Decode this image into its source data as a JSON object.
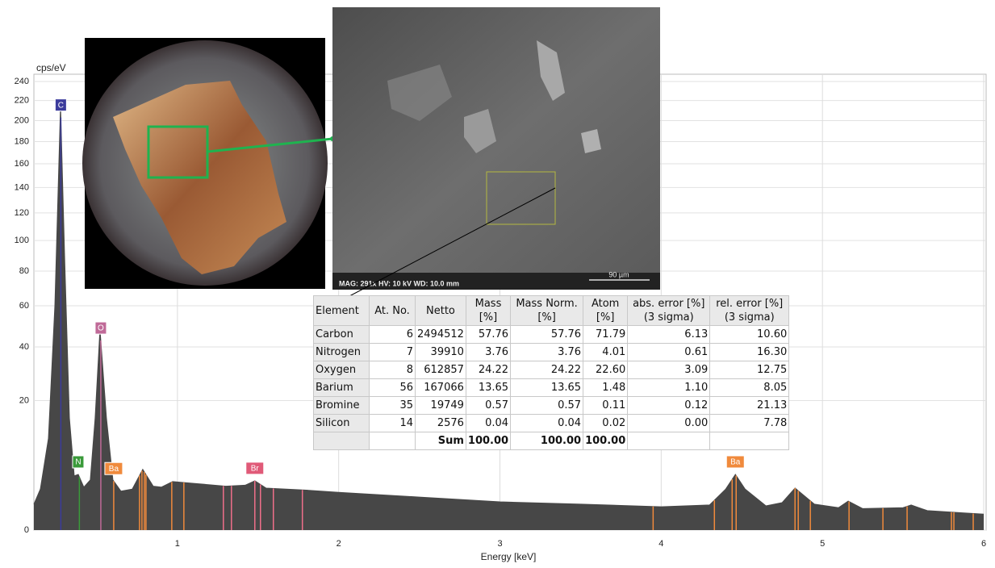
{
  "chart_data": {
    "type": "area",
    "y_label": "cps/eV",
    "x_label": "Energy [keV]",
    "x": [
      0.11,
      0.15,
      0.2,
      0.24,
      0.275,
      0.3,
      0.33,
      0.36,
      0.385,
      0.42,
      0.46,
      0.49,
      0.52,
      0.56,
      0.6,
      0.65,
      0.72,
      0.785,
      0.85,
      0.9,
      0.97,
      1.1,
      1.3,
      1.42,
      1.48,
      1.55,
      1.8,
      2.0,
      2.5,
      3.0,
      3.5,
      4.0,
      4.3,
      4.4,
      4.46,
      4.52,
      4.65,
      4.75,
      4.83,
      4.95,
      5.1,
      5.16,
      5.25,
      5.5,
      5.55,
      5.65,
      6.0
    ],
    "values": [
      0.8,
      2,
      10,
      60,
      215,
      90,
      15,
      3.5,
      3.7,
      2.2,
      3,
      15,
      48,
      15,
      3,
      1.8,
      2,
      4.4,
      2.3,
      2.2,
      2.8,
      2.6,
      2.3,
      2.4,
      2.9,
      2.1,
      1.9,
      1.7,
      1.3,
      0.95,
      0.8,
      0.65,
      0.75,
      2,
      3.7,
      2,
      0.7,
      0.9,
      2.1,
      0.8,
      0.6,
      1,
      0.55,
      0.6,
      0.75,
      0.45,
      0.3
    ],
    "color": "#474747",
    "scale": "sqrt",
    "xlim": [
      0.11,
      6
    ],
    "ylim": [
      0,
      240
    ],
    "xticks": [
      1,
      2,
      3,
      4,
      5,
      6
    ],
    "yticks": [
      0,
      20,
      40,
      60,
      80,
      100,
      120,
      140,
      160,
      180,
      200,
      220,
      240
    ],
    "grid": true,
    "element_labels": [
      {
        "label": "C",
        "energy": 0.277,
        "color": "#3b3b9c"
      },
      {
        "label": "N",
        "energy": 0.385,
        "color": "#3a9a3a"
      },
      {
        "label": "O",
        "energy": 0.525,
        "color": "#c06a98"
      },
      {
        "label": "Ba",
        "energy": 0.605,
        "color": "#f08a3c"
      },
      {
        "label": "Br",
        "energy": 1.48,
        "color": "#e05a78"
      },
      {
        "label": "Ba",
        "energy": 4.46,
        "color": "#f08a3c"
      }
    ],
    "element_lines": [
      {
        "color": "#3b3b9c",
        "energies": [
          0.277
        ]
      },
      {
        "color": "#3a9a3a",
        "energies": [
          0.392
        ]
      },
      {
        "color": "#c06a98",
        "energies": [
          0.525
        ]
      },
      {
        "color": "#f08a3c",
        "energies": [
          0.605,
          0.765,
          0.78,
          0.795,
          0.805,
          0.965,
          1.04,
          3.95,
          4.33,
          4.44,
          4.465,
          4.83,
          4.85,
          4.925,
          5.165,
          5.375,
          5.525,
          5.8,
          5.815,
          5.935
        ]
      },
      {
        "color": "#ef6f8a",
        "energies": [
          1.285,
          1.335,
          1.48,
          1.515,
          1.595,
          1.775
        ]
      }
    ]
  },
  "table": {
    "header": [
      "Element",
      "At. No.",
      "Netto",
      "Mass [%]",
      "Mass Norm. [%]",
      "Atom [%]",
      "abs. error [%] (3 sigma)",
      "rel. error [%] (3 sigma)"
    ],
    "rows": [
      [
        "Carbon",
        "6",
        "2494512",
        "57.76",
        "57.76",
        "71.79",
        "6.13",
        "10.60"
      ],
      [
        "Nitrogen",
        "7",
        "39910",
        "3.76",
        "3.76",
        "4.01",
        "0.61",
        "16.30"
      ],
      [
        "Oxygen",
        "8",
        "612857",
        "24.22",
        "24.22",
        "22.60",
        "3.09",
        "12.75"
      ],
      [
        "Barium",
        "56",
        "167066",
        "13.65",
        "13.65",
        "1.48",
        "1.10",
        "8.05"
      ],
      [
        "Bromine",
        "35",
        "19749",
        "0.57",
        "0.57",
        "0.11",
        "0.12",
        "21.13"
      ],
      [
        "Silicon",
        "14",
        "2576",
        "0.04",
        "0.04",
        "0.02",
        "0.00",
        "7.78"
      ]
    ],
    "sum": {
      "label": "Sum",
      "values": [
        "100.00",
        "100.00",
        "100.00"
      ]
    }
  },
  "sem_image": {
    "info": "MAG: 291x   HV: 10 kV   WD: 10.0 mm",
    "scale_bar": "90 µm"
  }
}
